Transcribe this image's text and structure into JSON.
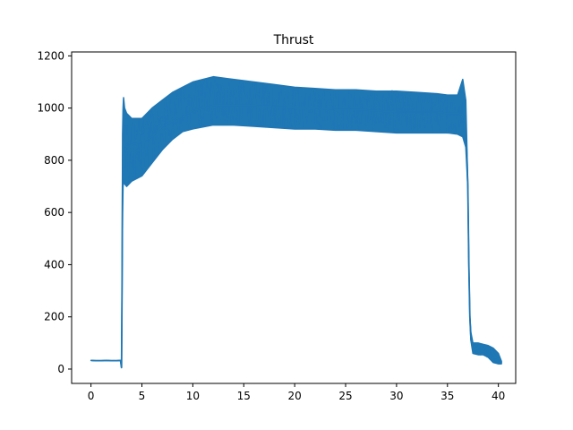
{
  "chart_data": {
    "type": "line",
    "title": "Thrust",
    "xlabel": "",
    "ylabel": "",
    "xlim": [
      -1.9,
      41.7
    ],
    "ylim": [
      -55,
      1215
    ],
    "x_ticks": [
      0,
      5,
      10,
      15,
      20,
      25,
      30,
      35,
      40
    ],
    "y_ticks": [
      0,
      200,
      400,
      600,
      800,
      1000,
      1200
    ],
    "grid": false,
    "color": "#1f77b4",
    "series": [
      {
        "x": [
          0,
          0.5,
          1,
          1.5,
          2,
          2.5,
          2.9,
          3.0,
          3.05,
          3.1,
          3.15,
          3.2,
          3.3,
          3.5,
          4,
          5,
          6,
          7,
          8,
          9,
          10,
          12,
          14,
          16,
          18,
          20,
          22,
          24,
          26,
          28,
          30,
          32,
          34,
          35,
          36,
          36.5,
          36.8,
          37.0,
          37.1,
          37.2,
          37.3,
          37.5,
          38,
          38.5,
          39,
          39.5,
          40,
          40.3
        ],
        "y": [
          33,
          32,
          32,
          33,
          32,
          32,
          33,
          5,
          300,
          700,
          850,
          880,
          860,
          850,
          860,
          870,
          890,
          930,
          950,
          970,
          990,
          1010,
          1010,
          1010,
          1005,
          1000,
          1000,
          995,
          995,
          990,
          985,
          985,
          985,
          980,
          980,
          975,
          940,
          700,
          400,
          200,
          120,
          75,
          70,
          70,
          55,
          45,
          40,
          25
        ],
        "low": [
          33,
          32,
          32,
          33,
          32,
          32,
          33,
          5,
          300,
          600,
          700,
          720,
          710,
          700,
          720,
          740,
          790,
          840,
          880,
          910,
          920,
          935,
          935,
          930,
          925,
          920,
          920,
          915,
          915,
          910,
          905,
          905,
          905,
          905,
          900,
          890,
          850,
          700,
          400,
          200,
          110,
          60,
          55,
          55,
          45,
          25,
          20,
          20
        ],
        "high": [
          33,
          32,
          32,
          33,
          32,
          32,
          33,
          5,
          300,
          900,
          1000,
          1040,
          1000,
          980,
          960,
          960,
          1000,
          1030,
          1060,
          1080,
          1100,
          1120,
          1110,
          1100,
          1090,
          1080,
          1075,
          1070,
          1070,
          1065,
          1065,
          1060,
          1055,
          1050,
          1050,
          1110,
          1030,
          700,
          400,
          200,
          140,
          100,
          100,
          95,
          90,
          80,
          60,
          30
        ]
      }
    ]
  }
}
